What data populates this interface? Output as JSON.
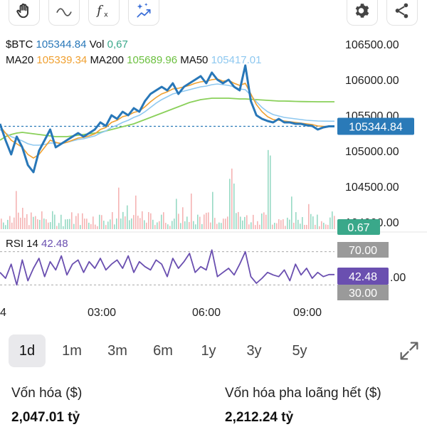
{
  "toolbar": {
    "left_buttons": [
      {
        "icon": "hand-icon"
      },
      {
        "icon": "wave-line-icon"
      },
      {
        "icon": "fx-icon",
        "label": "fx"
      },
      {
        "icon": "magic-sparkle-icon"
      }
    ],
    "right_buttons": [
      {
        "icon": "gear-icon"
      },
      {
        "icon": "share-icon"
      }
    ]
  },
  "legend": {
    "symbol": "$BTC",
    "price": "105344.84",
    "vol_label": "Vol",
    "vol_value": "0,67",
    "ma20_label": "MA20",
    "ma20_value": "105339.34",
    "ma200_label": "MA200",
    "ma200_value": "105689.96",
    "ma50_label": "MA50",
    "ma50_value": "105417.01"
  },
  "rsi": {
    "label": "RSI 14",
    "value": "42.48",
    "upper_label": "70.00",
    "lower_label": "30.00",
    "mid_label": ".00"
  },
  "price_axis": {
    "ticks": [
      "106500.00",
      "106000.00",
      "105500.00",
      "105000.00",
      "104500.00",
      "104000.00"
    ],
    "current_label": "105344.84",
    "vol_label": "0.67"
  },
  "time_axis": {
    "ticks": [
      "4",
      "03:00",
      "06:00",
      "09:00"
    ]
  },
  "periods": [
    {
      "label": "1d",
      "active": true
    },
    {
      "label": "1m",
      "active": false
    },
    {
      "label": "3m",
      "active": false
    },
    {
      "label": "6m",
      "active": false
    },
    {
      "label": "1y",
      "active": false
    },
    {
      "label": "3y",
      "active": false
    },
    {
      "label": "5y",
      "active": false
    }
  ],
  "stats": {
    "market_cap_label": "Vốn hóa ($)",
    "market_cap_value": "2,047.01 tỷ",
    "fdv_label": "Vốn hóa pha loãng hết ($)",
    "fdv_value": "2,212.24 tỷ"
  },
  "colors": {
    "price_line": "#2877b8",
    "ma20": "#f0a030",
    "ma200": "#8ad05a",
    "ma50": "#8ec8f0",
    "rsi_line": "#6a4fb0",
    "vol_green": "#7dd1b5",
    "vol_red": "#f2a0a0",
    "price_tag": "#2a7ab8",
    "vol_tag": "#3aa88a",
    "rsi_tag": "#6a4fb0",
    "rsi_band_tag": "#9a9a9a"
  },
  "chart_data": {
    "type": "line",
    "x": [
      0,
      1,
      2,
      3,
      4,
      5,
      6,
      7,
      8,
      9,
      10,
      11,
      12,
      13,
      14,
      15,
      16,
      17,
      18,
      19,
      20,
      21,
      22,
      23,
      24,
      25,
      26,
      27,
      28,
      29,
      30,
      31,
      32,
      33,
      34,
      35,
      36,
      37,
      38,
      39,
      40,
      41,
      42,
      43,
      44,
      45,
      46,
      47,
      48,
      49,
      50,
      51,
      52,
      53,
      54,
      55,
      56,
      57,
      58,
      59,
      60
    ],
    "series": [
      {
        "name": "$BTC",
        "values": [
          105380,
          105150,
          104950,
          105200,
          105050,
          104800,
          104700,
          105000,
          105150,
          105300,
          105050,
          105100,
          105150,
          105200,
          105250,
          105200,
          105250,
          105300,
          105400,
          105350,
          105500,
          105450,
          105550,
          105500,
          105600,
          105550,
          105700,
          105800,
          105850,
          105900,
          105850,
          105950,
          105800,
          105900,
          105950,
          106000,
          106050,
          105950,
          106100,
          106000,
          105950,
          106000,
          105900,
          105850,
          106200,
          105700,
          105500,
          105450,
          105420,
          105400,
          105450,
          105400,
          105400,
          105380,
          105380,
          105360,
          105350,
          105300,
          105330,
          105345,
          105345
        ]
      },
      {
        "name": "MA20",
        "values": [
          105350,
          105250,
          105150,
          105100,
          105050,
          104950,
          104900,
          104950,
          105050,
          105150,
          105120,
          105100,
          105120,
          105150,
          105180,
          105190,
          105210,
          105240,
          105300,
          105330,
          105400,
          105430,
          105480,
          105500,
          105540,
          105560,
          105620,
          105690,
          105750,
          105800,
          105830,
          105870,
          105880,
          105900,
          105920,
          105950,
          105970,
          105980,
          106000,
          106010,
          105980,
          105990,
          105950,
          105920,
          105950,
          105800,
          105650,
          105550,
          105480,
          105440,
          105430,
          105420,
          105410,
          105400,
          105390,
          105380,
          105370,
          105350,
          105345,
          105340,
          105339
        ]
      },
      {
        "name": "MA200",
        "values": [
          105150,
          105200,
          105230,
          105250,
          105260,
          105250,
          105240,
          105230,
          105220,
          105210,
          105200,
          105200,
          105200,
          105210,
          105220,
          105230,
          105240,
          105250,
          105260,
          105280,
          105300,
          105320,
          105340,
          105360,
          105380,
          105410,
          105440,
          105470,
          105500,
          105530,
          105560,
          105590,
          105620,
          105650,
          105680,
          105700,
          105720,
          105730,
          105740,
          105740,
          105740,
          105740,
          105735,
          105730,
          105730,
          105725,
          105720,
          105715,
          105710,
          105705,
          105700,
          105700,
          105698,
          105695,
          105693,
          105692,
          105691,
          105690,
          105690,
          105690,
          105690
        ]
      },
      {
        "name": "MA50",
        "values": [
          105300,
          105250,
          105200,
          105170,
          105140,
          105100,
          105080,
          105080,
          105090,
          105110,
          105110,
          105110,
          105120,
          105140,
          105160,
          105170,
          105190,
          105210,
          105250,
          105280,
          105330,
          105360,
          105400,
          105430,
          105470,
          105500,
          105550,
          105610,
          105670,
          105720,
          105760,
          105800,
          105820,
          105840,
          105860,
          105880,
          105900,
          105910,
          105930,
          105940,
          105930,
          105920,
          105900,
          105870,
          105860,
          105780,
          105690,
          105610,
          105550,
          105510,
          105490,
          105470,
          105460,
          105450,
          105440,
          105430,
          105425,
          105420,
          105418,
          105417,
          105417
        ]
      },
      {
        "name": "RSI 14",
        "values": [
          45,
          38,
          55,
          30,
          60,
          35,
          50,
          62,
          40,
          58,
          48,
          65,
          42,
          55,
          60,
          45,
          58,
          50,
          62,
          48,
          55,
          60,
          50,
          65,
          45,
          58,
          52,
          48,
          60,
          55,
          40,
          62,
          50,
          58,
          68,
          45,
          52,
          48,
          72,
          40,
          45,
          50,
          42,
          55,
          70,
          40,
          32,
          38,
          45,
          42,
          40,
          48,
          35,
          55,
          42,
          50,
          38,
          45,
          40,
          42.48,
          42.48
        ]
      }
    ],
    "ylim": [
      104000,
      106700
    ],
    "yticks": [
      106500,
      106000,
      105500,
      105000,
      104500,
      104000
    ],
    "rsi_levels": [
      70,
      30
    ]
  }
}
